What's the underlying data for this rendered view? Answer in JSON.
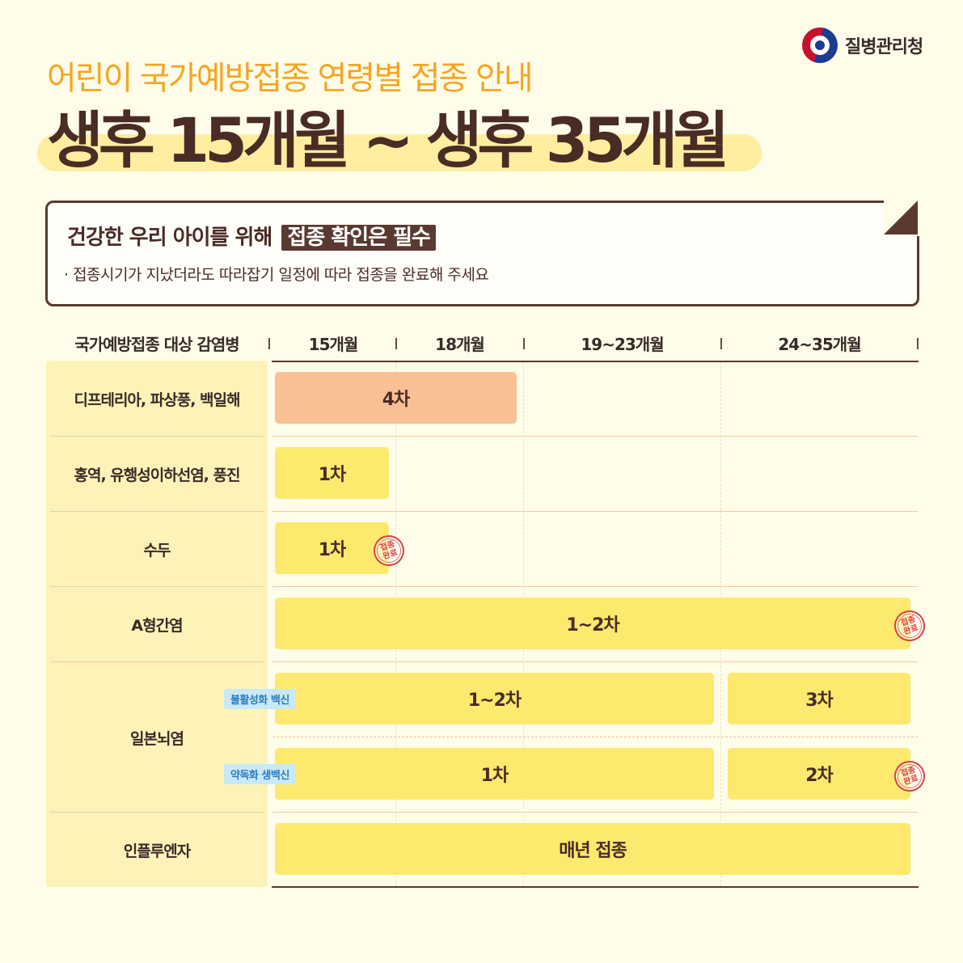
{
  "agency": {
    "name": "질병관리청",
    "logo_icon": "taegeuk-logo-icon"
  },
  "subtitle": "어린이 국가예방접종 연령별 접종 안내",
  "title": "생후 15개월 ~ 생후 35개월",
  "notice": {
    "headline_prefix": "건강한 우리 아이를 위해",
    "headline_tag": "접종 확인은 필수",
    "description": "· 접종시기가 지났더라도 따라잡기 일정에 따라 접종을 완료해 주세요"
  },
  "table": {
    "header": {
      "disease_col": "국가예방접종 대상 감염병",
      "columns": [
        "15개월",
        "18개월",
        "19~23개월",
        "24~35개월"
      ]
    },
    "rows": [
      {
        "disease": "디프테리아, 파상풍, 백일해",
        "doses": [
          "4차"
        ]
      },
      {
        "disease": "홍역, 유행성이하선염, 풍진",
        "doses": [
          "1차"
        ]
      },
      {
        "disease": "수두",
        "doses": [
          "1차"
        ],
        "stamp": "접종완료"
      },
      {
        "disease": "A형간염",
        "doses": [
          "1~2차"
        ],
        "stamp": "접종완료"
      },
      {
        "disease": "일본뇌염",
        "subrows": [
          {
            "vaccine_type": "불활성화 백신",
            "doses": [
              "1~2차",
              "3차"
            ]
          },
          {
            "vaccine_type": "약독화 생백신",
            "doses": [
              "1차",
              "2차"
            ],
            "stamp": "접종완료"
          }
        ]
      },
      {
        "disease": "인플루엔자",
        "doses": [
          "매년 접종"
        ]
      }
    ]
  },
  "colors": {
    "background": "#fffcea",
    "accent_orange": "#f5a623",
    "dose_yellow": "#fde96e",
    "dose_salmon": "#f9bf95",
    "brown": "#4a2c24",
    "stamp_red": "#d94040",
    "tag_blue": "#c9e9f7"
  }
}
